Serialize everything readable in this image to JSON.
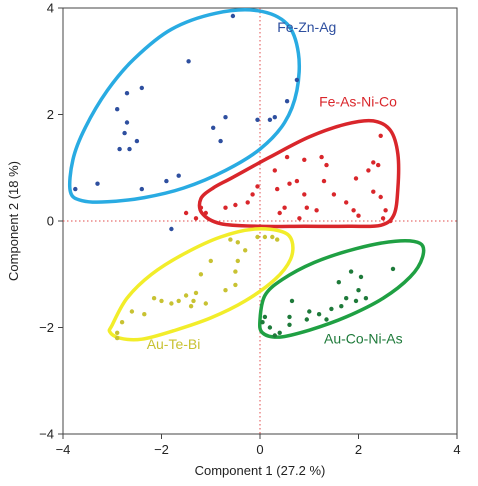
{
  "chart_data": {
    "type": "scatter",
    "title": "",
    "xlabel": "Component 1 (27.2 %)",
    "ylabel": "Component 2 (18 %)",
    "xlim": [
      -4,
      4
    ],
    "ylim": [
      -4,
      4
    ],
    "xticks": [
      -4,
      -2,
      0,
      2,
      4
    ],
    "yticks": [
      -4,
      -2,
      0,
      2,
      4
    ],
    "xtick_labels": [
      "−4",
      "−2",
      "0",
      "2",
      "4"
    ],
    "ytick_labels": [
      "−4",
      "−2",
      "0",
      "2",
      "4"
    ],
    "grid": false,
    "reference_lines": {
      "x": 0,
      "y": 0,
      "style": "dotted",
      "color": "#e04b4b"
    },
    "groups": [
      {
        "label": "Fe-Zn-Ag",
        "color": "#2e4f9f",
        "ellipse_color": "#29abe2",
        "points": [
          [
            -0.55,
            3.85
          ],
          [
            -1.45,
            3.0
          ],
          [
            -2.4,
            2.5
          ],
          [
            -2.7,
            2.4
          ],
          [
            -2.9,
            2.1
          ],
          [
            0.75,
            2.65
          ],
          [
            0.55,
            2.25
          ],
          [
            0.3,
            1.95
          ],
          [
            0.2,
            1.9
          ],
          [
            -0.05,
            1.9
          ],
          [
            -0.7,
            1.95
          ],
          [
            -2.7,
            1.85
          ],
          [
            -2.75,
            1.65
          ],
          [
            -2.5,
            1.5
          ],
          [
            -2.65,
            1.35
          ],
          [
            -2.85,
            1.35
          ],
          [
            -0.95,
            1.75
          ],
          [
            -0.8,
            1.5
          ],
          [
            -1.65,
            0.85
          ],
          [
            -1.9,
            0.75
          ],
          [
            -2.4,
            0.6
          ],
          [
            -3.3,
            0.7
          ],
          [
            -3.75,
            0.6
          ],
          [
            -1.8,
            -0.15
          ]
        ]
      },
      {
        "label": "Fe-As-Ni-Co",
        "color": "#d9262b",
        "ellipse_color": "#d9262b",
        "points": [
          [
            2.45,
            1.6
          ],
          [
            2.3,
            1.1
          ],
          [
            2.4,
            1.05
          ],
          [
            2.2,
            0.95
          ],
          [
            1.25,
            1.2
          ],
          [
            0.9,
            1.15
          ],
          [
            0.55,
            1.2
          ],
          [
            1.35,
            1.05
          ],
          [
            0.3,
            0.95
          ],
          [
            1.3,
            0.75
          ],
          [
            1.95,
            0.8
          ],
          [
            0.75,
            0.75
          ],
          [
            -0.05,
            0.65
          ],
          [
            0.35,
            0.6
          ],
          [
            0.6,
            0.7
          ],
          [
            2.3,
            0.55
          ],
          [
            -0.15,
            0.5
          ],
          [
            0.9,
            0.5
          ],
          [
            1.5,
            0.5
          ],
          [
            -0.25,
            0.35
          ],
          [
            1.75,
            0.35
          ],
          [
            2.45,
            0.45
          ],
          [
            -0.5,
            0.3
          ],
          [
            1.9,
            0.2
          ],
          [
            0.95,
            0.25
          ],
          [
            0.4,
            0.15
          ],
          [
            0.5,
            0.25
          ],
          [
            -0.7,
            0.25
          ],
          [
            0.8,
            0.05
          ],
          [
            1.15,
            0.2
          ],
          [
            2.0,
            0.1
          ],
          [
            2.5,
            0.05
          ],
          [
            2.55,
            0.2
          ],
          [
            2.65,
            0.0
          ],
          [
            -1.1,
            0.15
          ],
          [
            -1.3,
            0.05
          ],
          [
            -1.5,
            0.15
          ],
          [
            -1.2,
            0.25
          ]
        ]
      },
      {
        "label": "Au-Te-Bi",
        "color": "#c8c232",
        "ellipse_color": "#f2ed2a",
        "points": [
          [
            0.25,
            -0.3
          ],
          [
            0.35,
            -0.35
          ],
          [
            0.1,
            -0.3
          ],
          [
            -0.05,
            -0.3
          ],
          [
            -0.45,
            -0.4
          ],
          [
            -0.6,
            -0.35
          ],
          [
            -0.3,
            -0.55
          ],
          [
            -0.45,
            -0.75
          ],
          [
            -0.5,
            -0.95
          ],
          [
            -0.5,
            -1.2
          ],
          [
            -0.7,
            -1.3
          ],
          [
            -1.0,
            -0.75
          ],
          [
            -1.2,
            -1.0
          ],
          [
            -1.3,
            -1.35
          ],
          [
            -1.35,
            -1.5
          ],
          [
            -1.4,
            -1.6
          ],
          [
            -1.5,
            -1.4
          ],
          [
            -1.65,
            -1.5
          ],
          [
            -1.8,
            -1.55
          ],
          [
            -1.1,
            -1.55
          ],
          [
            -2.0,
            -1.5
          ],
          [
            -2.15,
            -1.45
          ],
          [
            -2.35,
            -1.75
          ],
          [
            -2.6,
            -1.7
          ],
          [
            -2.8,
            -1.9
          ],
          [
            -2.9,
            -2.1
          ],
          [
            -2.9,
            -2.2
          ]
        ]
      },
      {
        "label": "Au-Co-Ni-As",
        "color": "#1e7a3a",
        "ellipse_color": "#1fa043",
        "points": [
          [
            1.85,
            -0.95
          ],
          [
            1.6,
            -1.15
          ],
          [
            2.05,
            -1.05
          ],
          [
            2.0,
            -1.3
          ],
          [
            2.15,
            -1.45
          ],
          [
            1.75,
            -1.45
          ],
          [
            1.95,
            -1.5
          ],
          [
            1.65,
            -1.6
          ],
          [
            0.65,
            -1.5
          ],
          [
            1.45,
            -1.65
          ],
          [
            1.2,
            -1.75
          ],
          [
            1.0,
            -1.7
          ],
          [
            0.95,
            -1.85
          ],
          [
            1.35,
            -1.85
          ],
          [
            0.6,
            -1.8
          ],
          [
            0.6,
            -1.95
          ],
          [
            0.1,
            -1.8
          ],
          [
            0.2,
            -2.0
          ],
          [
            0.4,
            -2.1
          ],
          [
            0.3,
            -2.15
          ],
          [
            0.05,
            -1.9
          ],
          [
            2.7,
            -0.9
          ]
        ]
      }
    ],
    "ellipses": [
      {
        "group": "Fe-Zn-Ag",
        "path": [
          [
            -3.85,
            0.55
          ],
          [
            -3.8,
            1.15
          ],
          [
            -3.55,
            1.75
          ],
          [
            -3.1,
            2.45
          ],
          [
            -2.55,
            3.05
          ],
          [
            -1.8,
            3.6
          ],
          [
            -0.9,
            3.9
          ],
          [
            -0.05,
            3.95
          ],
          [
            0.55,
            3.7
          ],
          [
            0.78,
            3.15
          ],
          [
            0.75,
            2.45
          ],
          [
            0.5,
            1.85
          ],
          [
            0.0,
            1.35
          ],
          [
            -0.7,
            0.95
          ],
          [
            -1.55,
            0.62
          ],
          [
            -2.35,
            0.44
          ],
          [
            -3.1,
            0.36
          ],
          [
            -3.6,
            0.38
          ]
        ]
      },
      {
        "group": "Fe-As-Ni-Co",
        "path": [
          [
            -0.55,
            0.82
          ],
          [
            0.2,
            1.2
          ],
          [
            1.0,
            1.58
          ],
          [
            1.75,
            1.82
          ],
          [
            2.3,
            1.88
          ],
          [
            2.65,
            1.7
          ],
          [
            2.8,
            1.25
          ],
          [
            2.8,
            0.62
          ],
          [
            2.72,
            0.12
          ],
          [
            2.45,
            -0.08
          ],
          [
            1.8,
            -0.1
          ],
          [
            0.9,
            -0.1
          ],
          [
            0.0,
            -0.1
          ],
          [
            -0.8,
            -0.05
          ],
          [
            -1.18,
            0.15
          ],
          [
            -1.2,
            0.42
          ],
          [
            -0.95,
            0.62
          ]
        ]
      },
      {
        "group": "Au-Te-Bi",
        "path": [
          [
            -3.0,
            -1.95
          ],
          [
            -2.7,
            -1.45
          ],
          [
            -2.2,
            -1.0
          ],
          [
            -1.55,
            -0.62
          ],
          [
            -0.8,
            -0.3
          ],
          [
            -0.1,
            -0.15
          ],
          [
            0.45,
            -0.2
          ],
          [
            0.65,
            -0.38
          ],
          [
            0.62,
            -0.72
          ],
          [
            0.3,
            -1.1
          ],
          [
            -0.3,
            -1.5
          ],
          [
            -1.0,
            -1.82
          ],
          [
            -1.75,
            -2.06
          ],
          [
            -2.4,
            -2.22
          ],
          [
            -2.85,
            -2.2
          ],
          [
            -3.05,
            -2.08
          ]
        ]
      },
      {
        "group": "Au-Co-Ni-As",
        "path": [
          [
            0.0,
            -1.85
          ],
          [
            0.1,
            -1.4
          ],
          [
            0.45,
            -1.1
          ],
          [
            1.1,
            -0.78
          ],
          [
            1.95,
            -0.52
          ],
          [
            2.75,
            -0.38
          ],
          [
            3.25,
            -0.42
          ],
          [
            3.3,
            -0.68
          ],
          [
            3.05,
            -1.05
          ],
          [
            2.5,
            -1.45
          ],
          [
            1.75,
            -1.8
          ],
          [
            1.0,
            -2.05
          ],
          [
            0.4,
            -2.18
          ],
          [
            0.05,
            -2.1
          ]
        ]
      }
    ],
    "annotations": [
      {
        "text": "Fe-Zn-Ag",
        "x": 0.35,
        "y": 3.55,
        "color": "#2e4f9f"
      },
      {
        "text": "Fe-As-Ni-Co",
        "x": 1.2,
        "y": 2.15,
        "color": "#d9262b"
      },
      {
        "text": "Au-Te-Bi",
        "x": -2.3,
        "y": -2.4,
        "color": "#c8c232"
      },
      {
        "text": "Au-Co-Ni-As",
        "x": 1.3,
        "y": -2.3,
        "color": "#1e7a3a"
      }
    ]
  }
}
